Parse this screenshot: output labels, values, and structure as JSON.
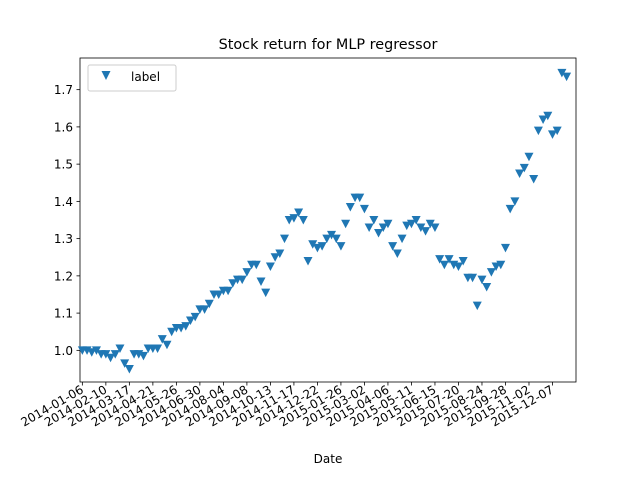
{
  "chart_data": {
    "type": "scatter",
    "title": "Stock return for MLP regressor",
    "xlabel": "Date",
    "ylabel": "",
    "legend": {
      "entries": [
        "label"
      ],
      "placement": "top-left"
    },
    "marker": "triangle-down",
    "color": "#1f77b4",
    "grid": false,
    "x_range": [
      "2014-01-01",
      "2015-12-31"
    ],
    "ylim": [
      0.915,
      1.785
    ],
    "yticks": [
      1.0,
      1.1,
      1.2,
      1.3,
      1.4,
      1.5,
      1.6,
      1.7
    ],
    "ytick_labels": [
      "1.0",
      "1.1",
      "1.2",
      "1.3",
      "1.4",
      "1.5",
      "1.6",
      "1.7"
    ],
    "xticks": [
      "2014-01-06",
      "2014-02-10",
      "2014-03-17",
      "2014-04-21",
      "2014-05-26",
      "2014-06-30",
      "2014-08-04",
      "2014-09-08",
      "2014-10-13",
      "2014-11-17",
      "2014-12-22",
      "2015-01-26",
      "2015-03-02",
      "2015-04-06",
      "2015-05-11",
      "2015-06-15",
      "2015-07-20",
      "2015-08-24",
      "2015-09-28",
      "2015-11-02",
      "2015-12-07"
    ],
    "xtick_labels": [
      "2014-01-06",
      "2014-02-10",
      "2014-03-17",
      "2014-04-21",
      "2014-05-26",
      "2014-06-30",
      "2014-08-04",
      "2014-09-08",
      "2014-10-13",
      "2014-11-17",
      "2014-12-22",
      "2015-01-26",
      "2015-03-02",
      "2015-04-06",
      "2015-05-11",
      "2015-06-15",
      "2015-07-20",
      "2015-08-24",
      "2015-09-28",
      "2015-11-02",
      "2015-12-07"
    ],
    "series": [
      {
        "name": "label",
        "x": [
          "2014-01-06",
          "2014-01-13",
          "2014-01-20",
          "2014-01-27",
          "2014-02-03",
          "2014-02-10",
          "2014-02-17",
          "2014-02-24",
          "2014-03-03",
          "2014-03-10",
          "2014-03-17",
          "2014-03-24",
          "2014-03-31",
          "2014-04-07",
          "2014-04-14",
          "2014-04-21",
          "2014-04-28",
          "2014-05-05",
          "2014-05-12",
          "2014-05-19",
          "2014-05-26",
          "2014-06-02",
          "2014-06-09",
          "2014-06-16",
          "2014-06-23",
          "2014-06-30",
          "2014-07-07",
          "2014-07-14",
          "2014-07-21",
          "2014-07-28",
          "2014-08-04",
          "2014-08-11",
          "2014-08-18",
          "2014-08-25",
          "2014-09-01",
          "2014-09-08",
          "2014-09-15",
          "2014-09-22",
          "2014-09-29",
          "2014-10-06",
          "2014-10-13",
          "2014-10-20",
          "2014-10-27",
          "2014-11-03",
          "2014-11-10",
          "2014-11-17",
          "2014-11-24",
          "2014-12-01",
          "2014-12-08",
          "2014-12-15",
          "2014-12-22",
          "2014-12-29",
          "2015-01-05",
          "2015-01-12",
          "2015-01-19",
          "2015-01-26",
          "2015-02-02",
          "2015-02-09",
          "2015-02-16",
          "2015-02-23",
          "2015-03-02",
          "2015-03-09",
          "2015-03-16",
          "2015-03-23",
          "2015-03-30",
          "2015-04-06",
          "2015-04-13",
          "2015-04-20",
          "2015-04-27",
          "2015-05-04",
          "2015-05-11",
          "2015-05-18",
          "2015-05-25",
          "2015-06-01",
          "2015-06-08",
          "2015-06-15",
          "2015-06-22",
          "2015-06-29",
          "2015-07-06",
          "2015-07-13",
          "2015-07-20",
          "2015-07-27",
          "2015-08-03",
          "2015-08-10",
          "2015-08-17",
          "2015-08-24",
          "2015-08-31",
          "2015-09-07",
          "2015-09-14",
          "2015-09-21",
          "2015-09-28",
          "2015-10-05",
          "2015-10-12",
          "2015-10-19",
          "2015-10-26",
          "2015-11-02",
          "2015-11-09",
          "2015-11-16",
          "2015-11-23",
          "2015-11-30",
          "2015-12-07",
          "2015-12-14",
          "2015-12-21",
          "2015-12-28"
        ],
        "y": [
          1.0,
          1.0,
          0.995,
          1.0,
          0.99,
          0.99,
          0.98,
          0.99,
          1.005,
          0.965,
          0.95,
          0.99,
          0.99,
          0.985,
          1.005,
          1.005,
          1.005,
          1.03,
          1.015,
          1.05,
          1.06,
          1.06,
          1.065,
          1.08,
          1.09,
          1.11,
          1.11,
          1.125,
          1.15,
          1.15,
          1.16,
          1.16,
          1.18,
          1.19,
          1.19,
          1.21,
          1.23,
          1.23,
          1.185,
          1.155,
          1.225,
          1.25,
          1.26,
          1.3,
          1.35,
          1.355,
          1.37,
          1.35,
          1.24,
          1.285,
          1.275,
          1.28,
          1.3,
          1.31,
          1.3,
          1.28,
          1.34,
          1.385,
          1.41,
          1.41,
          1.38,
          1.33,
          1.35,
          1.315,
          1.33,
          1.34,
          1.28,
          1.26,
          1.3,
          1.335,
          1.34,
          1.35,
          1.33,
          1.32,
          1.34,
          1.33,
          1.245,
          1.23,
          1.245,
          1.23,
          1.225,
          1.24,
          1.195,
          1.195,
          1.12,
          1.19,
          1.17,
          1.21,
          1.225,
          1.23,
          1.275,
          1.38,
          1.4,
          1.475,
          1.49,
          1.52,
          1.46,
          1.59,
          1.62,
          1.63,
          1.58,
          1.59,
          1.745,
          1.735
        ]
      }
    ]
  }
}
